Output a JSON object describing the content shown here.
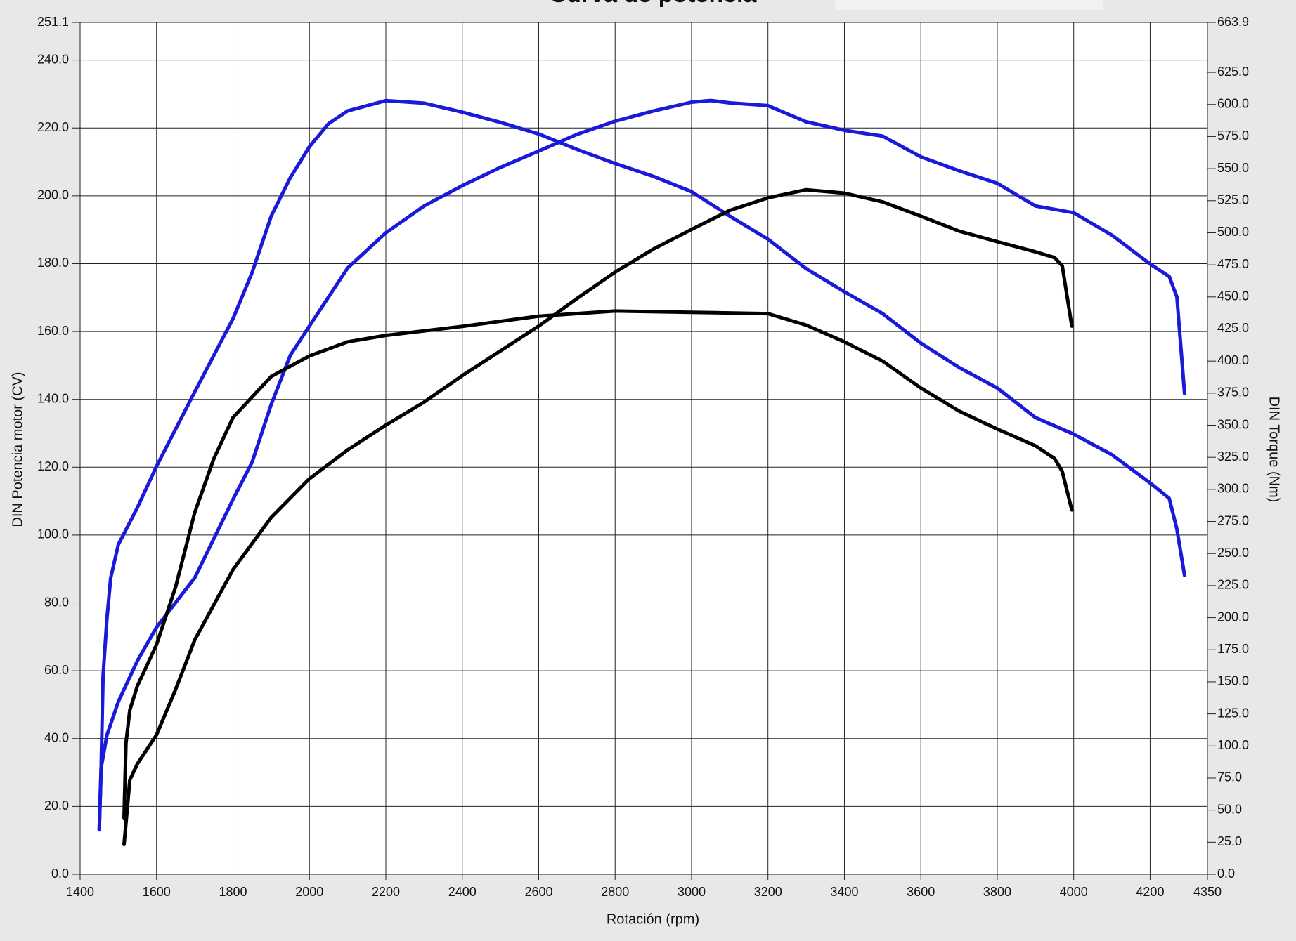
{
  "chart_data": {
    "type": "line",
    "title": "Curva de potencia",
    "x_label": "Rotación (rpm)",
    "y_label": "DIN Potencia motor (CV)",
    "y2_label": "DIN Torque (Nm)",
    "xlim": [
      1400,
      4350
    ],
    "xticks": [
      1400,
      1600,
      1800,
      2000,
      2200,
      2400,
      2600,
      2800,
      3000,
      3200,
      3400,
      3600,
      3800,
      4000,
      4200,
      4350
    ],
    "ylim": [
      0,
      251.1
    ],
    "yticks": [
      {
        "value": 0,
        "label": "0.0"
      },
      {
        "value": 20,
        "label": "20.0"
      },
      {
        "value": 40,
        "label": "40.0"
      },
      {
        "value": 60,
        "label": "60.0"
      },
      {
        "value": 80,
        "label": "80.0"
      },
      {
        "value": 100,
        "label": "100.0"
      },
      {
        "value": 120,
        "label": "120.0"
      },
      {
        "value": 140,
        "label": "140.0"
      },
      {
        "value": 160,
        "label": "160.0"
      },
      {
        "value": 180,
        "label": "180.0"
      },
      {
        "value": 200,
        "label": "200.0"
      },
      {
        "value": 220,
        "label": "220.0"
      },
      {
        "value": 240,
        "label": "240.0"
      },
      251.1
    ],
    "y2lim": [
      0,
      663.9
    ],
    "y2ticks": [
      {
        "value": 0,
        "label": "0.0"
      },
      {
        "value": 25,
        "label": "25.0"
      },
      {
        "value": 50,
        "label": "50.0"
      },
      {
        "value": 75,
        "label": "75.0"
      },
      {
        "value": 100,
        "label": "100.0"
      },
      {
        "value": 125,
        "label": "125.0"
      },
      {
        "value": 150,
        "label": "150.0"
      },
      {
        "value": 175,
        "label": "175.0"
      },
      {
        "value": 200,
        "label": "200.0"
      },
      {
        "value": 225,
        "label": "225.0"
      },
      {
        "value": 250,
        "label": "250.0"
      },
      {
        "value": 275,
        "label": "275.0"
      },
      {
        "value": 300,
        "label": "300.0"
      },
      {
        "value": 325,
        "label": "325.0"
      },
      {
        "value": 350,
        "label": "350.0"
      },
      {
        "value": 375,
        "label": "375.0"
      },
      {
        "value": 400,
        "label": "400.0"
      },
      {
        "value": 425,
        "label": "425.0"
      },
      {
        "value": 450,
        "label": "450.0"
      },
      {
        "value": 475,
        "label": "475.0"
      },
      {
        "value": 500,
        "label": "500.0"
      },
      {
        "value": 525,
        "label": "525.0"
      },
      {
        "value": 550,
        "label": "550.0"
      },
      {
        "value": 575,
        "label": "575.0"
      },
      {
        "value": 600,
        "label": "600.0"
      },
      {
        "value": 625,
        "label": "625.0"
      },
      663.9
    ],
    "grid": true,
    "series": [
      {
        "color": "#1a1ad8",
        "axis": "y2",
        "x": [
          1450,
          1455,
          1460,
          1470,
          1480,
          1500,
          1550,
          1600,
          1700,
          1800,
          1850,
          1900,
          1950,
          2000,
          2050,
          2100,
          2200,
          2300,
          2400,
          2500,
          2600,
          2700,
          2800,
          2900,
          3000,
          3100,
          3200,
          3300,
          3400,
          3500,
          3600,
          3700,
          3800,
          3900,
          4000,
          4100,
          4200,
          4250,
          4270,
          4290
        ],
        "values": [
          35,
          83,
          154,
          199,
          231,
          257,
          286,
          318,
          376,
          433,
          469,
          513,
          543,
          567,
          585,
          595,
          603,
          601,
          594,
          586,
          577,
          565,
          554,
          544,
          532,
          513,
          495,
          472,
          454,
          437,
          414,
          395,
          379,
          356,
          343,
          327,
          305,
          293,
          269,
          233
        ]
      },
      {
        "color": "#1a1ad8",
        "x": [
          1450,
          1455,
          1470,
          1500,
          1550,
          1600,
          1700,
          1800,
          1850,
          1900,
          1950,
          2000,
          2100,
          2200,
          2300,
          2400,
          2500,
          2600,
          2700,
          2800,
          2900,
          3000,
          3050,
          3100,
          3200,
          3300,
          3400,
          3500,
          3600,
          3700,
          3800,
          3900,
          4000,
          4100,
          4200,
          4250,
          4270,
          4290
        ],
        "values": [
          13.1,
          31.4,
          41,
          50.9,
          63,
          72.8,
          87.4,
          110.5,
          121.5,
          138.5,
          153,
          161.6,
          178.7,
          189.1,
          197,
          203,
          208.4,
          213.2,
          218.1,
          222,
          225,
          227.6,
          228.1,
          227.4,
          226.6,
          221.8,
          219.3,
          217.6,
          211.5,
          207.4,
          203.7,
          197,
          195,
          188.4,
          179.9,
          176.2,
          170.2,
          141.7
        ]
      },
      {
        "color": "#000000",
        "axis": "y2",
        "x": [
          1515,
          1520,
          1530,
          1550,
          1600,
          1650,
          1700,
          1750,
          1800,
          1900,
          2000,
          2100,
          2200,
          2400,
          2600,
          2800,
          3000,
          3200,
          3300,
          3400,
          3500,
          3600,
          3700,
          3800,
          3900,
          3950,
          3970,
          3995
        ],
        "values": [
          44,
          102,
          128,
          147,
          179,
          224,
          282,
          324,
          356,
          388,
          404,
          415,
          420,
          427,
          435,
          439,
          438,
          437,
          428,
          415,
          400,
          379,
          361,
          347,
          334,
          324,
          314,
          284
        ]
      },
      {
        "color": "#000000",
        "x": [
          1515,
          1530,
          1550,
          1600,
          1650,
          1700,
          1800,
          1900,
          2000,
          2100,
          2200,
          2300,
          2400,
          2500,
          2600,
          2700,
          2800,
          2900,
          3000,
          3100,
          3200,
          3300,
          3400,
          3500,
          3600,
          3700,
          3800,
          3900,
          3950,
          3970,
          3995
        ],
        "values": [
          8.8,
          27.8,
          32.6,
          41.1,
          54.5,
          69.1,
          89.8,
          105.2,
          116.6,
          125.1,
          132.4,
          139.2,
          147,
          154.3,
          161.6,
          169.7,
          177.5,
          184.3,
          190.1,
          195.7,
          199.4,
          201.8,
          200.8,
          198.2,
          194,
          189.6,
          186.5,
          183.5,
          181.8,
          179.4,
          161.6
        ]
      }
    ]
  }
}
